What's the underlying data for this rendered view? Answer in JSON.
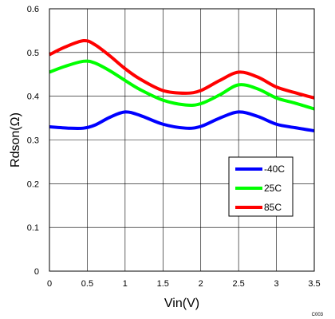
{
  "chart_data": {
    "type": "line",
    "xlabel": "Vin(V)",
    "ylabel": "Rdson(Ω)",
    "xlim": [
      0,
      3.5
    ],
    "ylim": [
      0,
      0.6
    ],
    "xticks": [
      "0",
      "0.5",
      "1",
      "1.5",
      "2",
      "2.5",
      "3",
      "3.5"
    ],
    "yticks": [
      "0",
      "0.1",
      "0.2",
      "0.3",
      "0.4",
      "0.5",
      "0.6"
    ],
    "grid": true,
    "legend_position": "lower-right",
    "series": [
      {
        "name": "-40C",
        "color": "#0000ff",
        "x": [
          0,
          0.25,
          0.45,
          0.6,
          0.8,
          1.0,
          1.2,
          1.5,
          1.8,
          2.0,
          2.25,
          2.5,
          2.75,
          3.0,
          3.25,
          3.5
        ],
        "y": [
          0.33,
          0.327,
          0.327,
          0.334,
          0.352,
          0.364,
          0.356,
          0.336,
          0.327,
          0.331,
          0.35,
          0.364,
          0.354,
          0.336,
          0.328,
          0.321
        ]
      },
      {
        "name": "25C",
        "color": "#00ff00",
        "x": [
          0,
          0.2,
          0.45,
          0.6,
          0.8,
          1.0,
          1.2,
          1.5,
          1.8,
          2.0,
          2.25,
          2.5,
          2.75,
          3.0,
          3.25,
          3.5
        ],
        "y": [
          0.455,
          0.468,
          0.48,
          0.476,
          0.458,
          0.436,
          0.415,
          0.391,
          0.38,
          0.383,
          0.403,
          0.426,
          0.417,
          0.396,
          0.384,
          0.371
        ]
      },
      {
        "name": "85C",
        "color": "#ff0000",
        "x": [
          0,
          0.2,
          0.45,
          0.6,
          0.8,
          1.0,
          1.2,
          1.5,
          1.8,
          2.0,
          2.25,
          2.5,
          2.75,
          3.0,
          3.25,
          3.5
        ],
        "y": [
          0.495,
          0.512,
          0.527,
          0.518,
          0.492,
          0.463,
          0.439,
          0.413,
          0.407,
          0.413,
          0.436,
          0.455,
          0.444,
          0.421,
          0.408,
          0.396
        ]
      }
    ]
  },
  "figure_code": "C003"
}
